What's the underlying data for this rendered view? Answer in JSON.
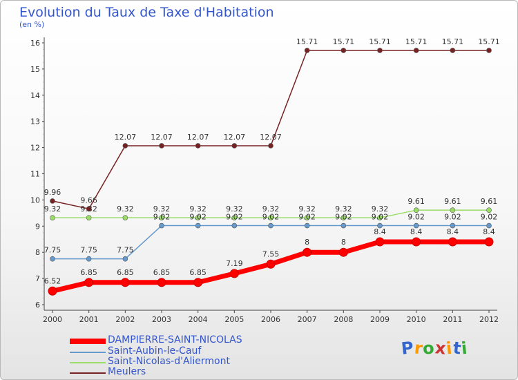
{
  "chart_data": {
    "type": "line",
    "title": "Evolution du Taux de Taxe d'Habitation",
    "ylabel": "(en %)",
    "xlabel": "",
    "ylim": [
      6,
      16
    ],
    "yticks": [
      "6",
      "7",
      "8",
      "9",
      "10",
      "11",
      "12",
      "13",
      "14",
      "15",
      "16"
    ],
    "categories": [
      "2000",
      "2001",
      "2002",
      "2003",
      "2004",
      "2005",
      "2006",
      "2007",
      "2008",
      "2009",
      "2010",
      "2011",
      "2012"
    ],
    "series": [
      {
        "name": "DAMPIERRE-SAINT-NICOLAS",
        "color": "#ff0000",
        "values": [
          6.52,
          6.85,
          6.85,
          6.85,
          6.85,
          7.19,
          7.55,
          8,
          8,
          8.4,
          8.4,
          8.4,
          8.4
        ],
        "labels": [
          "6.52",
          "6.85",
          "6.85",
          "6.85",
          "6.85",
          "7.19",
          "7.55",
          "8",
          "8",
          "8.4",
          "8.4",
          "8.4",
          "8.4"
        ]
      },
      {
        "name": "Saint-Aubin-le-Cauf",
        "color": "#6699cc",
        "values": [
          7.75,
          7.75,
          7.75,
          9.02,
          9.02,
          9.02,
          9.02,
          9.02,
          9.02,
          9.02,
          9.02,
          9.02,
          9.02
        ],
        "labels": [
          "7.75",
          "7.75",
          "7.75",
          "9.02",
          "9.02",
          "9.02",
          "9.02",
          "9.02",
          "9.02",
          "9.02",
          "9.02",
          "9.02",
          "9.02"
        ]
      },
      {
        "name": "Saint-Nicolas-d'Aliermont",
        "color": "#99dd66",
        "values": [
          9.32,
          9.32,
          9.32,
          9.32,
          9.32,
          9.32,
          9.32,
          9.32,
          9.32,
          9.32,
          9.61,
          9.61,
          9.61
        ],
        "labels": [
          "9.32",
          "9.32",
          "9.32",
          "9.32",
          "9.32",
          "9.32",
          "9.32",
          "9.32",
          "9.32",
          "9.32",
          "9.61",
          "9.61",
          "9.61"
        ]
      },
      {
        "name": "Meulers",
        "color": "#772222",
        "values": [
          9.96,
          9.66,
          12.07,
          12.07,
          12.07,
          12.07,
          12.07,
          15.71,
          15.71,
          15.71,
          15.71,
          15.71,
          15.71
        ],
        "labels": [
          "9.96",
          "9.66",
          "12.07",
          "12.07",
          "12.07",
          "12.07",
          "12.07",
          "15.71",
          "15.71",
          "15.71",
          "15.71",
          "15.71",
          "15.71"
        ]
      }
    ]
  },
  "logo": {
    "letters": [
      "P",
      "r",
      "o",
      "x",
      "i",
      "t",
      "i"
    ],
    "colors": [
      "#3366cc",
      "#ff9900",
      "#33aa33",
      "#cc3333",
      "#ff9900",
      "#3366cc",
      "#33aa33"
    ]
  }
}
